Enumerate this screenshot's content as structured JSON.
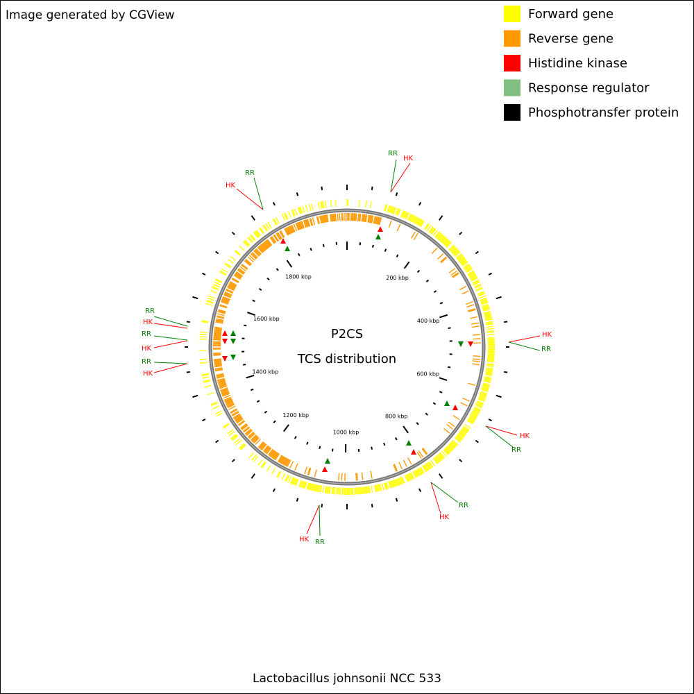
{
  "header": {
    "credit": "Image generated by CGView"
  },
  "legend": [
    {
      "label": "Forward gene",
      "color": "#ffff00"
    },
    {
      "label": "Reverse gene",
      "color": "#ff9900"
    },
    {
      "label": "Histidine kinase",
      "color": "#ff0000"
    },
    {
      "label": "Response regulator",
      "color": "#7fbf7f"
    },
    {
      "label": "Phosphotransfer protein",
      "color": "#000000"
    }
  ],
  "center": {
    "title": "P2CS",
    "subtitle": "TCS distribution"
  },
  "ruler": {
    "labels": [
      "200 kbp",
      "400 kbp",
      "600 kbp",
      "800 kbp",
      "1000 kbp",
      "1200 kbp",
      "1400 kbp",
      "1600 kbp",
      "1800 kbp"
    ]
  },
  "annotations": [
    {
      "label": "RR",
      "color": "#008000"
    },
    {
      "label": "HK",
      "color": "#ff0000"
    },
    {
      "label": "HK",
      "color": "#ff0000"
    },
    {
      "label": "RR",
      "color": "#008000"
    },
    {
      "label": "HK",
      "color": "#ff0000"
    },
    {
      "label": "RR",
      "color": "#008000"
    },
    {
      "label": "RR",
      "color": "#008000"
    },
    {
      "label": "HK",
      "color": "#ff0000"
    },
    {
      "label": "HK",
      "color": "#ff0000"
    },
    {
      "label": "RR",
      "color": "#008000"
    },
    {
      "label": "RR",
      "color": "#008000"
    },
    {
      "label": "HK",
      "color": "#ff0000"
    },
    {
      "label": "RR",
      "color": "#008000"
    },
    {
      "label": "HK",
      "color": "#ff0000"
    },
    {
      "label": "RR",
      "color": "#008000"
    },
    {
      "label": "HK",
      "color": "#ff0000"
    },
    {
      "label": "HK",
      "color": "#ff0000"
    },
    {
      "label": "RR",
      "color": "#008000"
    }
  ],
  "footer": {
    "organism": "Lactobacillus johnsonii NCC 533"
  }
}
